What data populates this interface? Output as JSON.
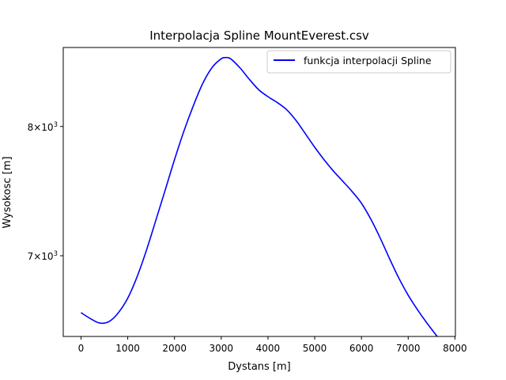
{
  "chart_data": {
    "type": "line",
    "title": "Interpolacja Spline MountEverest.csv",
    "xlabel": "Dystans [m]",
    "ylabel": "Wysokosc [m]",
    "y_scale": "log",
    "xlim": [
      -380,
      8010
    ],
    "ylim": [
      6440,
      8680
    ],
    "grid": false,
    "legend_position": "top-right",
    "x_ticks": [
      0,
      1000,
      2000,
      3000,
      4000,
      5000,
      6000,
      7000,
      8000
    ],
    "x_tick_labels": [
      "0",
      "1000",
      "2000",
      "3000",
      "4000",
      "5000",
      "6000",
      "7000",
      "8000"
    ],
    "y_ticks": [
      7000,
      8000
    ],
    "y_tick_labels": [
      {
        "base": "7×10",
        "exp": "3"
      },
      {
        "base": "8×10",
        "exp": "3"
      }
    ],
    "series": [
      {
        "name": "funkcja interpolacji Spline",
        "color": "#0000ff",
        "x": [
          0,
          200,
          400,
          600,
          800,
          1000,
          1200,
          1400,
          1600,
          1800,
          2000,
          2200,
          2400,
          2600,
          2800,
          3000,
          3100,
          3200,
          3400,
          3600,
          3800,
          4000,
          4200,
          4400,
          4600,
          4800,
          5000,
          5200,
          5400,
          5600,
          5800,
          6000,
          6200,
          6400,
          6600,
          6800,
          7000,
          7200,
          7400,
          7620
        ],
        "y": [
          6600,
          6560,
          6530,
          6540,
          6600,
          6700,
          6850,
          7040,
          7260,
          7490,
          7730,
          7960,
          8170,
          8360,
          8500,
          8580,
          8590,
          8580,
          8500,
          8400,
          8310,
          8250,
          8200,
          8140,
          8050,
          7940,
          7830,
          7730,
          7640,
          7560,
          7480,
          7390,
          7270,
          7130,
          6980,
          6840,
          6720,
          6620,
          6530,
          6440
        ]
      }
    ]
  }
}
